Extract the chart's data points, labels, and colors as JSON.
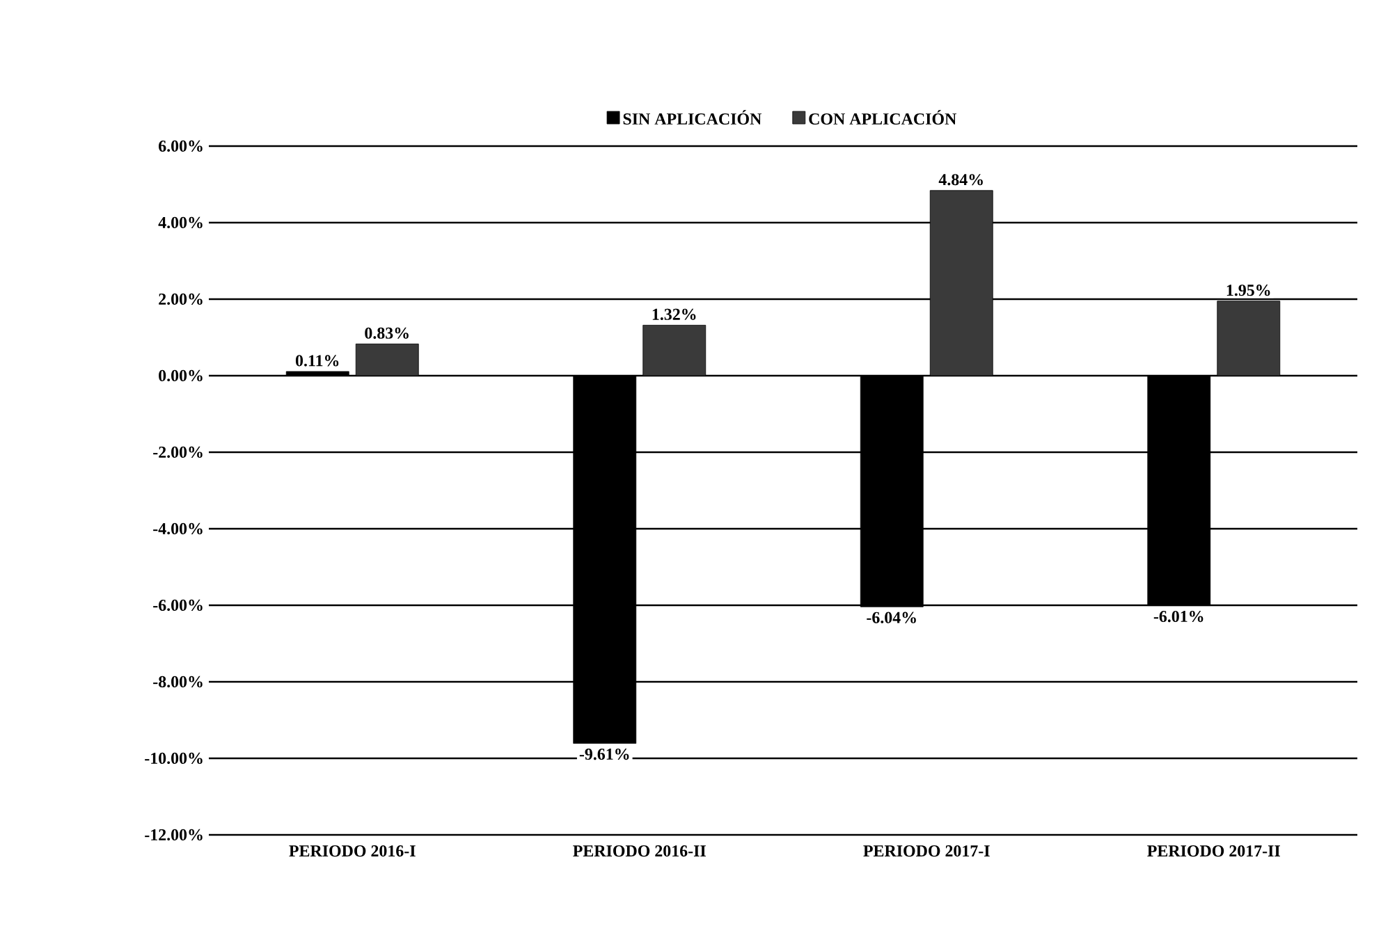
{
  "chart_data": {
    "type": "bar",
    "categories": [
      "PERIODO 2016-I",
      "PERIODO 2016-II",
      "PERIODO 2017-I",
      "PERIODO 2017-II"
    ],
    "series": [
      {
        "name": "SIN APLICACIÓN",
        "color": "#000000",
        "values": [
          0.11,
          -9.61,
          -6.04,
          -6.01
        ],
        "value_labels": [
          "0.11%",
          "-9.61%",
          "-6.04%",
          "-6.01%"
        ]
      },
      {
        "name": "CON APLICACIÓN",
        "color": "#3a3a3a",
        "values": [
          0.83,
          1.32,
          4.84,
          1.95
        ],
        "value_labels": [
          "0.83%",
          "1.32%",
          "4.84%",
          "1.95%"
        ]
      }
    ],
    "ylim": [
      -12,
      6
    ],
    "yticks": [
      {
        "value": -12,
        "label": "-12.00%"
      },
      {
        "value": -10,
        "label": "-10.00%"
      },
      {
        "value": -8,
        "label": "-8.00%"
      },
      {
        "value": -6,
        "label": "-6.00%"
      },
      {
        "value": -4,
        "label": "-4.00%"
      },
      {
        "value": -2,
        "label": "-2.00%"
      },
      {
        "value": 0,
        "label": "0.00%"
      },
      {
        "value": 2,
        "label": "2.00%"
      },
      {
        "value": 4,
        "label": "4.00%"
      },
      {
        "value": 6,
        "label": "6.00%"
      }
    ],
    "grid": "y",
    "legend": "top"
  }
}
